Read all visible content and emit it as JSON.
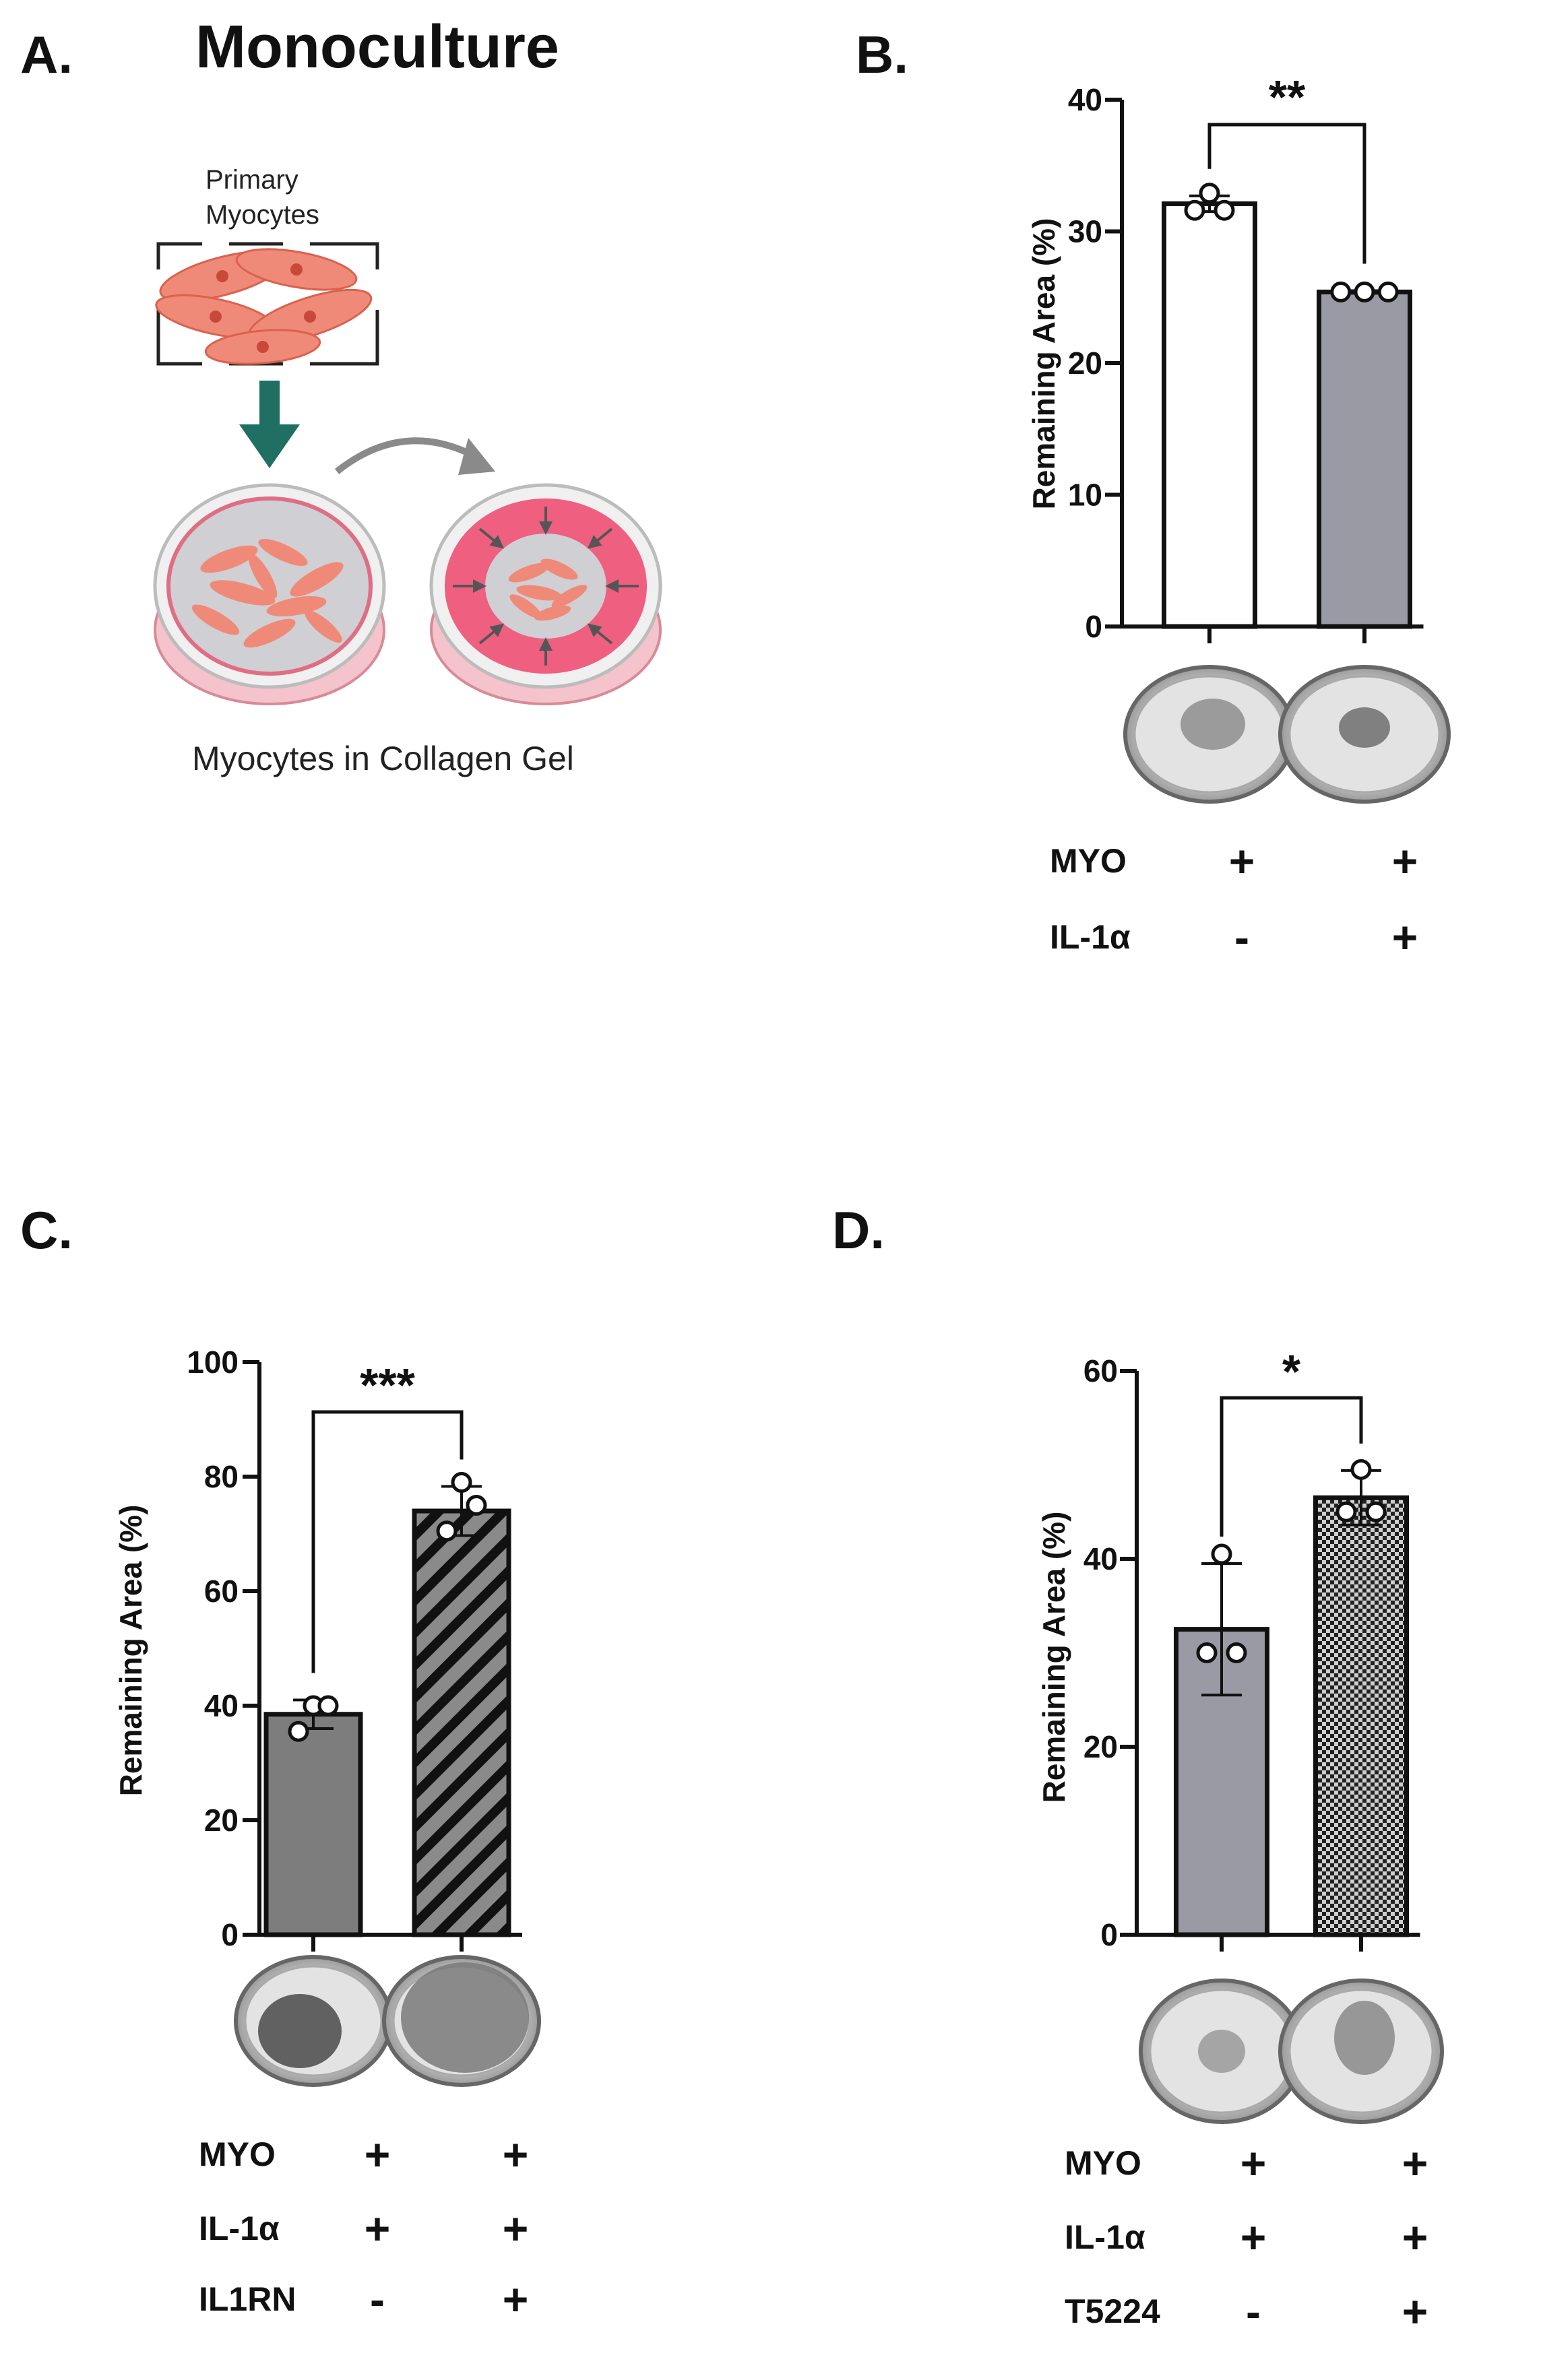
{
  "panel_a": {
    "label": "A.",
    "title": "Monoculture",
    "cell_label_line1": "Primary",
    "cell_label_line2": "Myocytes",
    "caption": "Myocytes in Collagen Gel"
  },
  "chart_data": [
    {
      "panel": "B.",
      "type": "bar",
      "ylabel": "Remaining Area (%)",
      "ylim": [
        0,
        40
      ],
      "yticks": [
        "0",
        "10",
        "20",
        "30",
        "40"
      ],
      "bars": [
        {
          "value": 32.1,
          "fill": "#ffffff",
          "pattern": "none",
          "points": [
            32.9,
            31.6,
            31.6
          ],
          "err": 0.6
        },
        {
          "value": 25.4,
          "fill": "#9a9aa4",
          "pattern": "none",
          "points": [
            25.4,
            25.4,
            25.4
          ],
          "err": 0.1
        }
      ],
      "significance": "**",
      "conditions": [
        {
          "label": "MYO",
          "values": [
            "+",
            "+"
          ]
        },
        {
          "label": "IL-1α",
          "values": [
            "-",
            "+"
          ]
        }
      ]
    },
    {
      "panel": "C.",
      "type": "bar",
      "ylabel": "Remaining Area (%)",
      "ylim": [
        0,
        100
      ],
      "yticks": [
        "0",
        "20",
        "40",
        "60",
        "80",
        "100"
      ],
      "bars": [
        {
          "value": 38.5,
          "fill": "#7d7d7d",
          "pattern": "none",
          "points": [
            40.0,
            40.0,
            35.5
          ],
          "err": 2.5
        },
        {
          "value": 74.0,
          "fill": "#8a8a8a",
          "pattern": "diagonal",
          "points": [
            79.0,
            75.0,
            70.5
          ],
          "err": 4.3
        }
      ],
      "significance": "***",
      "conditions": [
        {
          "label": "MYO",
          "values": [
            "+",
            "+"
          ]
        },
        {
          "label": "IL-1α",
          "values": [
            "+",
            "+"
          ]
        },
        {
          "label": "IL1RN",
          "values": [
            "-",
            "+"
          ]
        }
      ]
    },
    {
      "panel": "D.",
      "type": "bar",
      "ylabel": "Remaining Area (%)",
      "ylim": [
        0,
        60
      ],
      "yticks": [
        "0",
        "20",
        "40",
        "60"
      ],
      "bars": [
        {
          "value": 32.5,
          "fill": "#9a9aa4",
          "pattern": "none",
          "points": [
            40.5,
            30.0,
            30.0
          ],
          "err": 7.0
        },
        {
          "value": 46.5,
          "fill": "#555555",
          "pattern": "checker",
          "points": [
            49.5,
            45.0,
            45.0
          ],
          "err": 2.9
        }
      ],
      "significance": "*",
      "conditions": [
        {
          "label": "MYO",
          "values": [
            "+",
            "+"
          ]
        },
        {
          "label": "IL-1α",
          "values": [
            "+",
            "+"
          ]
        },
        {
          "label": "T5224",
          "values": [
            "-",
            "+"
          ]
        }
      ]
    }
  ]
}
